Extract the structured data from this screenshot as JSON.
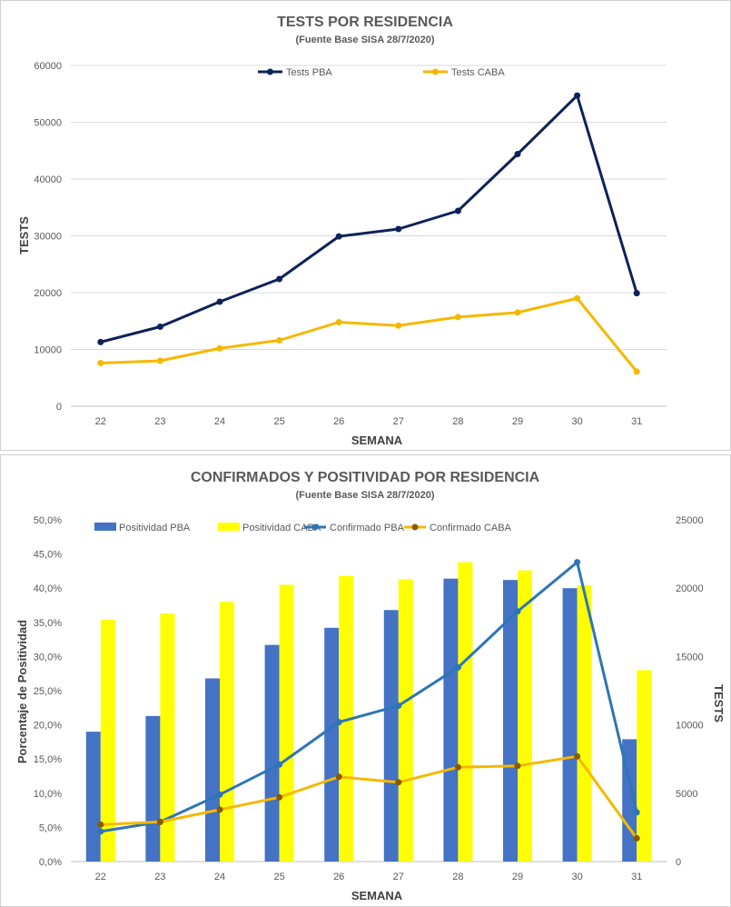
{
  "chart_data": [
    {
      "type": "line",
      "title": "TESTS POR RESIDENCIA",
      "subtitle": "(Fuente Base SISA 28/7/2020)",
      "xlabel": "SEMANA",
      "ylabel": "TESTS",
      "categories": [
        "22",
        "23",
        "24",
        "25",
        "26",
        "27",
        "28",
        "29",
        "30",
        "31"
      ],
      "ylim": [
        0,
        60000
      ],
      "yticks": [
        "0",
        "10000",
        "20000",
        "30000",
        "40000",
        "50000",
        "60000"
      ],
      "legend_position": "top",
      "grid": true,
      "series": [
        {
          "name": "Tests PBA",
          "color": "#0d2259",
          "values": [
            11300,
            14000,
            18400,
            22400,
            29900,
            31200,
            34400,
            44400,
            54700,
            19900
          ]
        },
        {
          "name": "Tests CABA",
          "color": "#f5b800",
          "values": [
            7600,
            8000,
            10200,
            11600,
            14800,
            14200,
            15700,
            16500,
            19000,
            6100
          ]
        }
      ]
    },
    {
      "type": "bar",
      "title": "CONFIRMADOS Y POSITIVIDAD POR RESIDENCIA",
      "subtitle": "(Fuente Base SISA 28/7/2020)",
      "xlabel": "SEMANA",
      "ylabel": "Porcentaje de Positividad",
      "y2label": "TESTS",
      "categories": [
        "22",
        "23",
        "24",
        "25",
        "26",
        "27",
        "28",
        "29",
        "30",
        "31"
      ],
      "ylim": [
        0,
        50
      ],
      "y2lim": [
        0,
        25000
      ],
      "yticks": [
        "0,0%",
        "5,0%",
        "10,0%",
        "15,0%",
        "20,0%",
        "25,0%",
        "30,0%",
        "35,0%",
        "40,0%",
        "45,0%",
        "50,0%"
      ],
      "y2ticks": [
        "0",
        "5000",
        "10000",
        "15000",
        "20000",
        "25000"
      ],
      "legend_position": "top",
      "grid": false,
      "bar_series": [
        {
          "name": "Positividad PBA",
          "color": "#4472c4",
          "values": [
            19.0,
            21.3,
            26.8,
            31.7,
            34.2,
            36.8,
            41.4,
            41.2,
            40.0,
            17.9
          ]
        },
        {
          "name": "Positividad CABA",
          "color": "#ffff00",
          "values": [
            35.4,
            36.3,
            38.0,
            40.5,
            41.8,
            41.3,
            43.8,
            42.6,
            40.4,
            28.0
          ]
        }
      ],
      "line_series": [
        {
          "name": "Confirmado PBA",
          "color": "#2e75b6",
          "marker_color": "#2e75b6",
          "axis": "right",
          "values": [
            2200,
            2900,
            4900,
            7100,
            10200,
            11400,
            14200,
            18300,
            21900,
            3600
          ]
        },
        {
          "name": "Confirmado CABA",
          "color": "#f5b800",
          "marker_color": "#8b5a00",
          "axis": "right",
          "values": [
            2700,
            2900,
            3800,
            4700,
            6200,
            5800,
            6900,
            7000,
            7700,
            1700
          ]
        }
      ]
    }
  ]
}
